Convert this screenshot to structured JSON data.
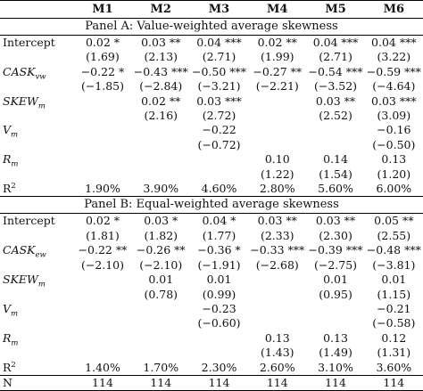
{
  "headers": [
    "",
    "M1",
    "M2",
    "M3",
    "M4",
    "M5",
    "M6"
  ],
  "panels": [
    {
      "title": "Panel A: Value-weighted average skewness",
      "rows": [
        {
          "label": "Intercept",
          "italic": false,
          "cells": [
            "0.02 *",
            "0.03 **",
            "0.04 ***",
            "0.02 **",
            "0.04 ***",
            "0.04 ***"
          ]
        },
        {
          "label": "",
          "cells": [
            "(1.69)",
            "(2.13)",
            "(2.71)",
            "(1.99)",
            "(2.71)",
            "(3.22)"
          ]
        },
        {
          "label": "CASK",
          "sub": "vw",
          "italic": true,
          "cells": [
            "−0.22 *",
            "−0.43 ***",
            "−0.50 ***",
            "−0.27 **",
            "−0.54 ***",
            "−0.59 ***"
          ]
        },
        {
          "label": "",
          "cells": [
            "(−1.85)",
            "(−2.84)",
            "(−3.21)",
            "(−2.21)",
            "(−3.52)",
            "(−4.64)"
          ]
        },
        {
          "label": "SKEW",
          "sub": "m",
          "italic": true,
          "cells": [
            "",
            "0.02 **",
            "0.03 ***",
            "",
            "0.03 **",
            "0.03 ***"
          ]
        },
        {
          "label": "",
          "cells": [
            "",
            "(2.16)",
            "(2.72)",
            "",
            "(2.52)",
            "(3.09)"
          ]
        },
        {
          "label": "V",
          "sub": "m",
          "italic": true,
          "cells": [
            "",
            "",
            "−0.22",
            "",
            "",
            "−0.16"
          ]
        },
        {
          "label": "",
          "cells": [
            "",
            "",
            "(−0.72)",
            "",
            "",
            "(−0.50)"
          ]
        },
        {
          "label": "R",
          "sub": "m",
          "italic": true,
          "cells": [
            "",
            "",
            "",
            "0.10",
            "0.14",
            "0.13"
          ]
        },
        {
          "label": "",
          "cells": [
            "",
            "",
            "",
            "(1.22)",
            "(1.54)",
            "(1.20)"
          ]
        },
        {
          "label": "R",
          "sup": "2",
          "italic": false,
          "cells": [
            "1.90%",
            "3.90%",
            "4.60%",
            "2.80%",
            "5.60%",
            "6.00%"
          ]
        }
      ]
    },
    {
      "title": "Panel B: Equal-weighted average skewness",
      "rows": [
        {
          "label": "Intercept",
          "italic": false,
          "cells": [
            "0.02 *",
            "0.03 *",
            "0.04 *",
            "0.03 **",
            "0.03 **",
            "0.05 **"
          ]
        },
        {
          "label": "",
          "cells": [
            "(1.81)",
            "(1.82)",
            "(1.77)",
            "(2.33)",
            "(2.30)",
            "(2.55)"
          ]
        },
        {
          "label": "CASK",
          "sub": "ew",
          "italic": true,
          "cells": [
            "−0.22 **",
            "−0.26 **",
            "−0.36 *",
            "−0.33 ***",
            "−0.39 ***",
            "−0.48 ***"
          ]
        },
        {
          "label": "",
          "cells": [
            "(−2.10)",
            "(−2.10)",
            "(−1.91)",
            "(−2.68)",
            "(−2.75)",
            "(−3.81)"
          ]
        },
        {
          "label": "SKEW",
          "sub": "m",
          "italic": true,
          "cells": [
            "",
            "0.01",
            "0.01",
            "",
            "0.01",
            "0.01"
          ]
        },
        {
          "label": "",
          "cells": [
            "",
            "(0.78)",
            "(0.99)",
            "",
            "(0.95)",
            "(1.15)"
          ]
        },
        {
          "label": "V",
          "sub": "m",
          "italic": true,
          "cells": [
            "",
            "",
            "−0.23",
            "",
            "",
            "−0.21"
          ]
        },
        {
          "label": "",
          "cells": [
            "",
            "",
            "(−0.60)",
            "",
            "",
            "(−0.58)"
          ]
        },
        {
          "label": "R",
          "sub": "m",
          "italic": true,
          "cells": [
            "",
            "",
            "",
            "0.13",
            "0.13",
            "0.12"
          ]
        },
        {
          "label": "",
          "cells": [
            "",
            "",
            "",
            "(1.43)",
            "(1.49)",
            "(1.31)"
          ]
        },
        {
          "label": "R",
          "sup": "2",
          "italic": false,
          "cells": [
            "1.40%",
            "1.70%",
            "2.30%",
            "2.60%",
            "3.10%",
            "3.60%"
          ]
        },
        {
          "label": "N",
          "italic": false,
          "cells": [
            "114",
            "114",
            "114",
            "114",
            "114",
            "114"
          ]
        }
      ]
    }
  ]
}
